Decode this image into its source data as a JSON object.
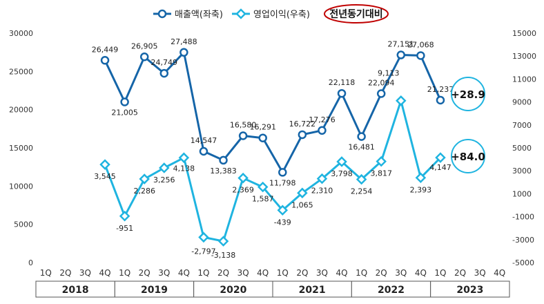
{
  "chart_data": {
    "type": "line",
    "title": "",
    "legend_position": "top",
    "legend": {
      "items": [
        "매출액(좌축)",
        "영업이익(우축)"
      ],
      "comparison_label": "전년동기대비"
    },
    "categories": [
      "1Q",
      "2Q",
      "3Q",
      "4Q",
      "1Q",
      "2Q",
      "3Q",
      "4Q",
      "1Q",
      "2Q",
      "3Q",
      "4Q",
      "1Q",
      "2Q",
      "3Q",
      "4Q",
      "1Q",
      "2Q",
      "3Q",
      "4Q",
      "1Q",
      "2Q",
      "3Q",
      "4Q"
    ],
    "years": [
      "2018",
      "2019",
      "2020",
      "2021",
      "2022",
      "2023"
    ],
    "y_left": {
      "min": 0,
      "max": 30000,
      "ticks": [
        "0",
        "5000",
        "10000",
        "15000",
        "20000",
        "25000",
        "30000"
      ]
    },
    "y_right": {
      "min": -5000,
      "max": 15000,
      "ticks": [
        "-5000",
        "-3000",
        "-1000",
        "1000",
        "3000",
        "5000",
        "7000",
        "9000",
        "11000",
        "13000",
        "15000"
      ]
    },
    "series": [
      {
        "name": "매출액(좌축)",
        "axis": "left",
        "color": "#1565a8",
        "marker": "circle",
        "values": [
          null,
          null,
          null,
          26449,
          21005,
          26905,
          24749,
          27488,
          14547,
          13383,
          16580,
          16291,
          11798,
          16722,
          17276,
          22118,
          16481,
          22094,
          27151,
          27068,
          21237,
          null,
          null,
          null
        ],
        "labels": [
          null,
          null,
          null,
          "26,449",
          "21,005",
          "26,905",
          "24,749",
          "27,488",
          "14,547",
          "13,383",
          "16,580",
          "16,291",
          "11,798",
          "16,722",
          "17,276",
          "22,118",
          "16,481",
          "22,094",
          "27,151",
          "27,068",
          "21,237",
          null,
          null,
          null
        ]
      },
      {
        "name": "영업이익(우축)",
        "axis": "right",
        "color": "#1fb4e0",
        "marker": "diamond",
        "values": [
          null,
          null,
          null,
          3545,
          -951,
          2286,
          3256,
          4138,
          -2797,
          -3138,
          2369,
          1587,
          -439,
          1065,
          2310,
          3798,
          2254,
          3817,
          9113,
          2393,
          4147,
          null,
          null,
          null
        ],
        "labels": [
          null,
          null,
          null,
          "3,545",
          "-951",
          "2,286",
          "3,256",
          "4,138",
          "-2,797",
          "-3,138",
          "2,369",
          "1,587",
          "-439",
          "1,065",
          "2,310",
          "3,798",
          "2,254",
          "3,817",
          "9,113",
          "2,393",
          "4,147",
          null,
          null,
          null
        ]
      }
    ],
    "annotations": [
      "+28.9",
      "+84.0"
    ]
  }
}
